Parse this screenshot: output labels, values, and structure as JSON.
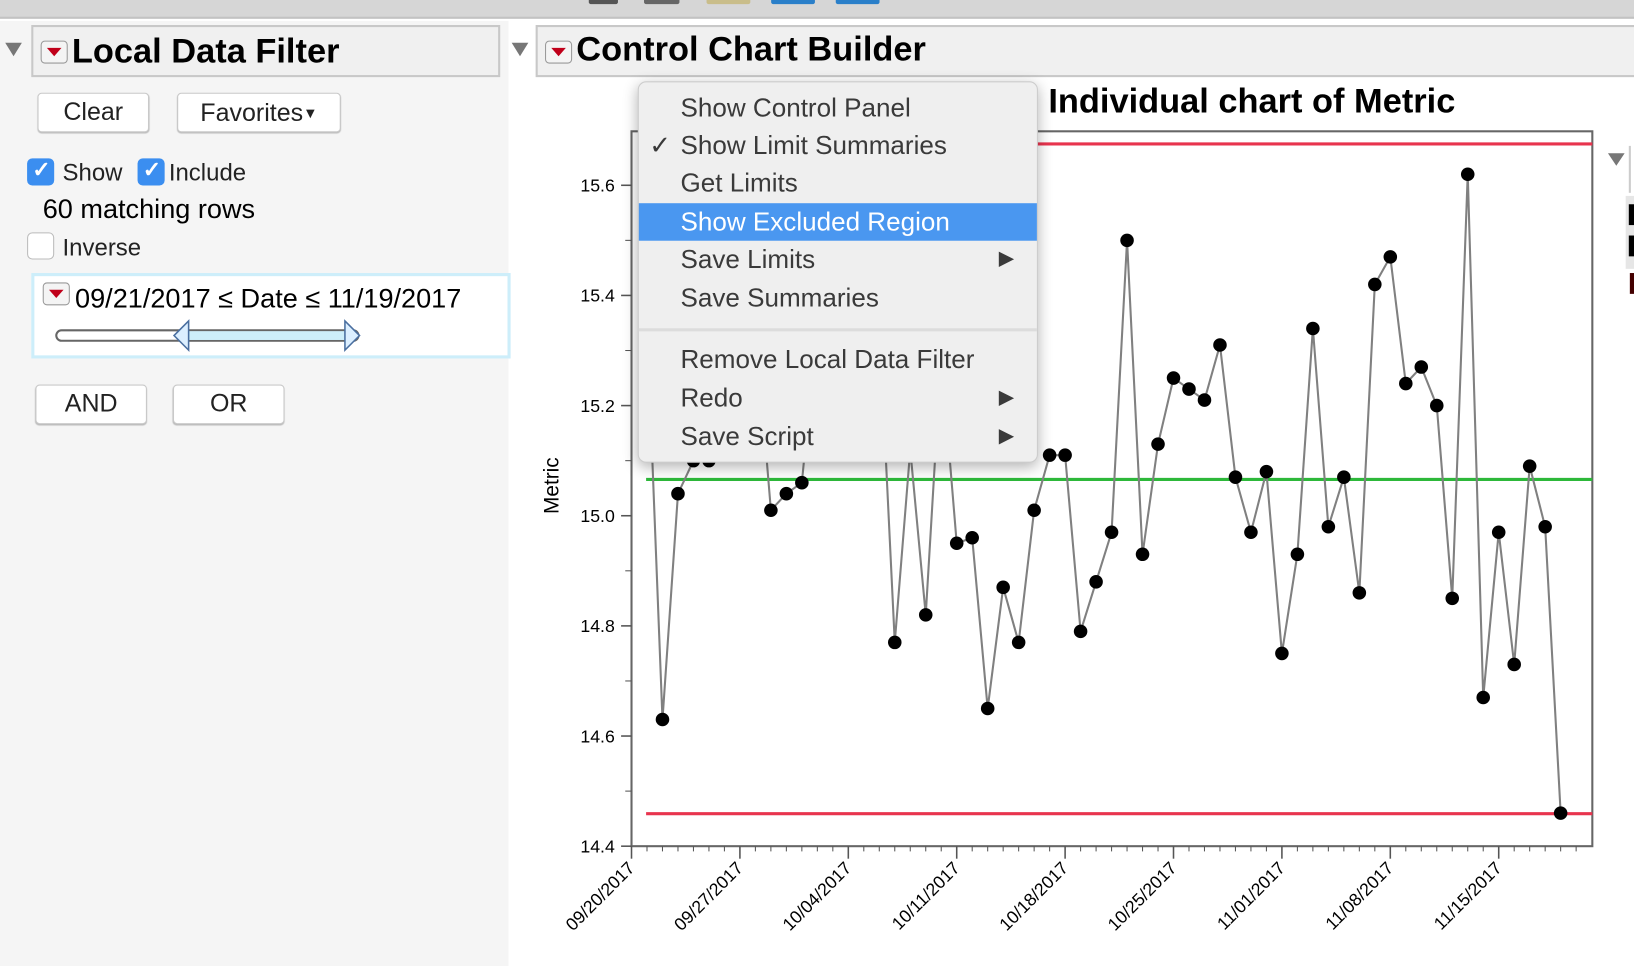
{
  "local_data_filter": {
    "title": "Local Data Filter",
    "clear_label": "Clear",
    "favorites_label": "Favorites",
    "show_label": "Show",
    "show_checked": true,
    "include_label": "Include",
    "include_checked": true,
    "matching_rows": "60 matching rows",
    "inverse_label": "Inverse",
    "inverse_checked": false,
    "condition": "09/21/2017 ≤ Date ≤ 11/19/2017",
    "and_label": "AND",
    "or_label": "OR"
  },
  "control_chart_builder": {
    "title": "Control Chart Builder",
    "chart_title": "Individual chart of Metric"
  },
  "context_menu": {
    "items": [
      {
        "label": "Show Control Panel",
        "checked": false,
        "submenu": false
      },
      {
        "label": "Show Limit Summaries",
        "checked": true,
        "submenu": false
      },
      {
        "label": "Get Limits",
        "checked": false,
        "submenu": false
      },
      {
        "label": "Show Excluded Region",
        "checked": false,
        "submenu": false,
        "highlighted": true
      },
      {
        "label": "Save Limits",
        "checked": false,
        "submenu": true
      },
      {
        "label": "Save Summaries",
        "checked": false,
        "submenu": false
      },
      {
        "label": "Remove Local Data Filter",
        "checked": false,
        "submenu": false
      },
      {
        "label": "Redo",
        "checked": false,
        "submenu": true
      },
      {
        "label": "Save Script",
        "checked": false,
        "submenu": true
      }
    ],
    "check_glyph": "✓",
    "submenu_glyph": "▶"
  },
  "colors": {
    "limit": "#e8344e",
    "center": "#2db83a",
    "highlight": "#4a97f0",
    "points": "#000000",
    "line": "#808080"
  },
  "chart_data": {
    "type": "line",
    "title": "Individual chart of Metric",
    "ylabel": "Metric",
    "xlabel": "",
    "ylim": [
      14.4,
      15.7
    ],
    "xlim": [
      "09/20/2017",
      "11/21/2017"
    ],
    "y_ticks": [
      "14.4",
      "14.6",
      "14.8",
      "15.0",
      "15.2",
      "15.4",
      "15.6"
    ],
    "x_ticks": [
      "09/20/2017",
      "09/27/2017",
      "10/04/2017",
      "10/11/2017",
      "10/18/2017",
      "10/25/2017",
      "11/01/2017",
      "11/08/2017",
      "11/15/2017"
    ],
    "ucl": 15.675,
    "center": 15.066,
    "lcl": 14.459,
    "x_start": "09/21/2017",
    "x_step_days": 1,
    "values": [
      15.35,
      14.63,
      15.04,
      15.1,
      15.1,
      15.13,
      15.3,
      15.35,
      15.01,
      15.04,
      15.06,
      15.35,
      15.4,
      15.3,
      15.45,
      15.35,
      14.77,
      15.12,
      14.82,
      15.29,
      14.95,
      14.96,
      14.65,
      14.87,
      14.77,
      15.01,
      15.11,
      15.11,
      14.79,
      14.88,
      14.97,
      15.5,
      14.93,
      15.13,
      15.25,
      15.23,
      15.21,
      15.31,
      15.07,
      14.97,
      15.08,
      14.75,
      14.93,
      15.34,
      14.98,
      15.07,
      14.86,
      15.42,
      15.47,
      15.24,
      15.27,
      15.2,
      14.85,
      15.62,
      14.67,
      14.97,
      14.73,
      15.09,
      14.98,
      14.46
    ]
  }
}
